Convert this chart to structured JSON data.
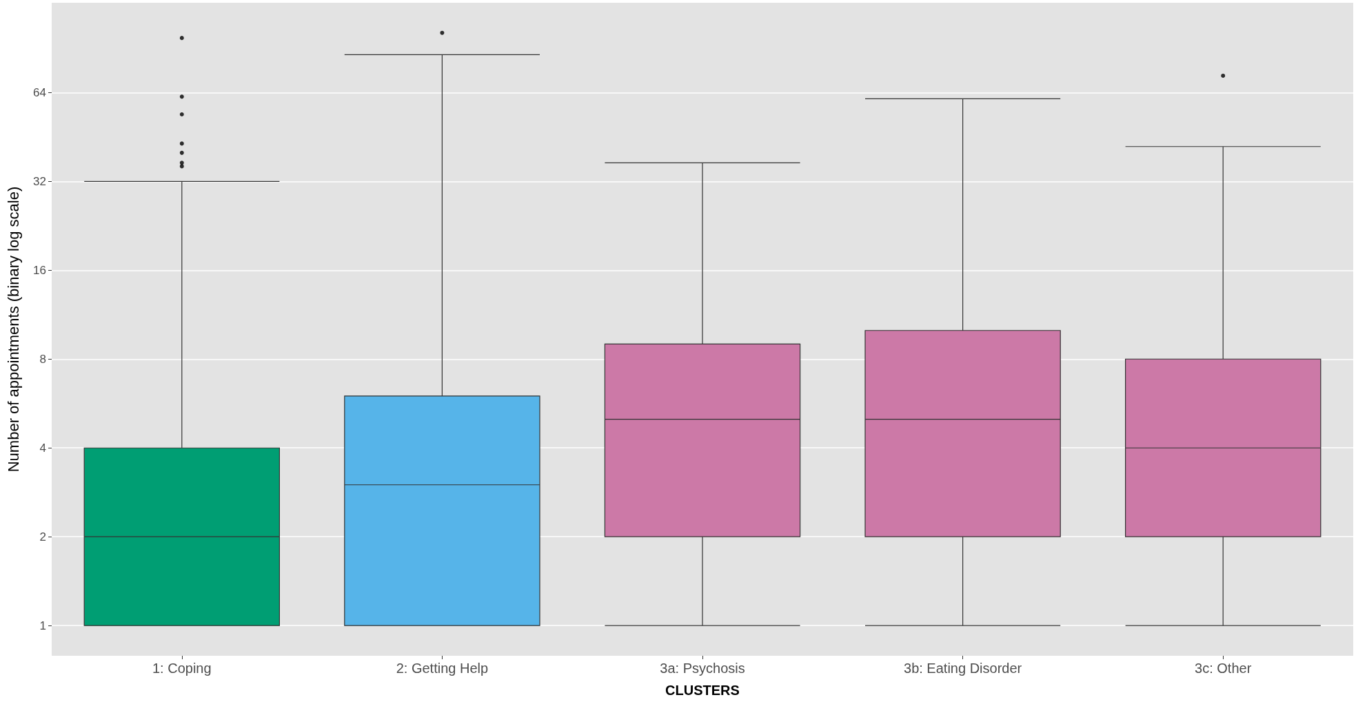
{
  "chart_data": {
    "type": "box",
    "xlabel": "CLUSTERS",
    "ylabel": "Number of appointments (binary log scale)",
    "categories": [
      "1: Coping",
      "2: Getting Help",
      "3a: Psychosis",
      "3b: Eating Disorder",
      "3c: Other"
    ],
    "colors": [
      "#009e73",
      "#56b4e9",
      "#cc79a7",
      "#cc79a7",
      "#cc79a7"
    ],
    "boxes": [
      {
        "low": 1,
        "q1": 1,
        "median": 2,
        "q3": 4,
        "high": 32,
        "outliers": [
          98,
          62,
          54,
          43,
          40,
          37,
          36
        ]
      },
      {
        "low": 1,
        "q1": 1,
        "median": 3,
        "q3": 6,
        "high": 86,
        "outliers": [
          102
        ]
      },
      {
        "low": 1,
        "q1": 2,
        "median": 5,
        "q3": 9,
        "high": 37
      },
      {
        "low": 1,
        "q1": 2,
        "median": 5,
        "q3": 10,
        "high": 61
      },
      {
        "low": 1,
        "q1": 2,
        "median": 4,
        "q3": 8,
        "high": 42,
        "outliers": [
          73
        ]
      }
    ],
    "log": "y",
    "ylim": [
      0.79,
      129
    ],
    "yticks": [
      1,
      2,
      4,
      8,
      16,
      32,
      64
    ],
    "grid": "y"
  }
}
